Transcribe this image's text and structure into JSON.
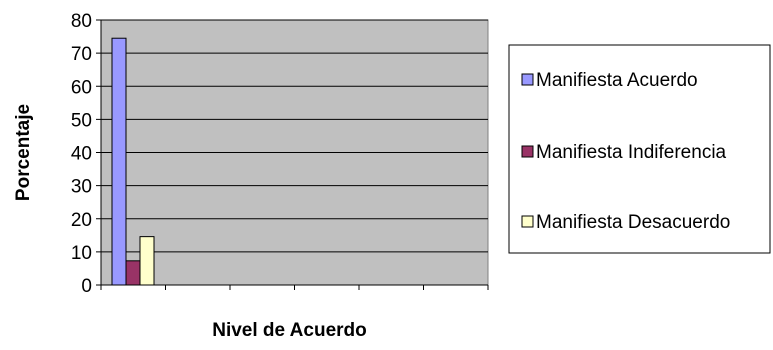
{
  "chart_data": {
    "type": "bar",
    "title": "",
    "xlabel": "Nivel de Acuerdo",
    "ylabel": "Porcentaje",
    "ylim": [
      0,
      80
    ],
    "yticks": [
      0,
      10,
      20,
      30,
      40,
      50,
      60,
      70,
      80
    ],
    "grid": true,
    "plot_background": "#c0c0c0",
    "legend_position": "right",
    "categories_count": 6,
    "series": [
      {
        "name": "Manifiesta Acuerdo",
        "values": [
          74.5
        ],
        "color": "#9999ff"
      },
      {
        "name": "Manifiesta Indiferencia",
        "values": [
          7.3
        ],
        "color": "#993366"
      },
      {
        "name": "Manifiesta Desacuerdo",
        "values": [
          14.6
        ],
        "color": "#ffffcc"
      }
    ]
  }
}
